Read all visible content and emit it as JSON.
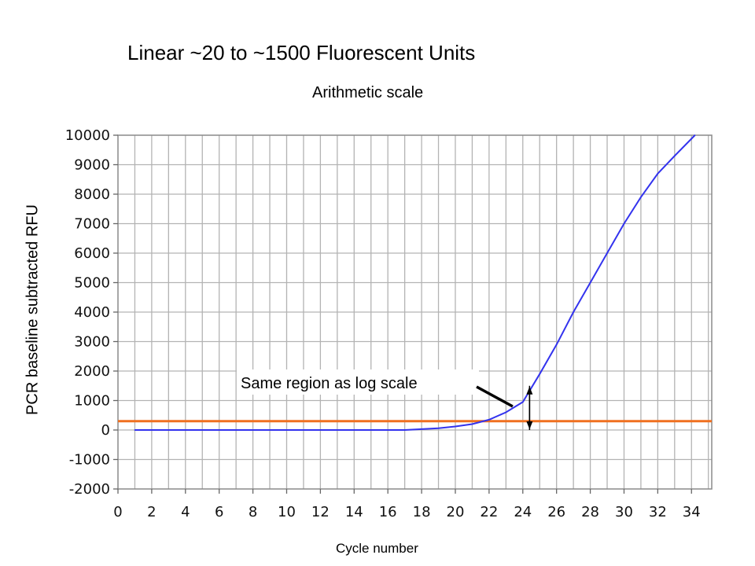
{
  "chart_data": {
    "type": "line",
    "title": "Linear ~20 to ~1500 Fluorescent Units",
    "subtitle": "Arithmetic scale",
    "xlabel": "Cycle number",
    "ylabel": "PCR baseline subtracted RFU",
    "xlim": [
      0,
      35.2
    ],
    "ylim": [
      -2000,
      10000
    ],
    "x_ticks": [
      0,
      2,
      4,
      6,
      8,
      10,
      12,
      14,
      16,
      18,
      20,
      22,
      24,
      26,
      28,
      30,
      32,
      34
    ],
    "y_ticks": [
      -2000,
      -1000,
      0,
      1000,
      2000,
      3000,
      4000,
      5000,
      6000,
      7000,
      8000,
      9000,
      10000
    ],
    "grid": true,
    "series": [
      {
        "color": "#3333ee",
        "x": [
          1,
          17,
          18,
          19,
          20,
          21,
          22,
          23,
          24,
          25,
          26,
          27,
          28,
          29,
          30,
          31,
          32,
          33,
          34.2
        ],
        "y": [
          0,
          0,
          30,
          60,
          120,
          200,
          350,
          600,
          950,
          1900,
          2900,
          4000,
          5000,
          6000,
          7000,
          7900,
          8700,
          9300,
          10000
        ]
      }
    ],
    "threshold": {
      "y": 300,
      "color": "#f07020"
    },
    "annotation": {
      "text": "Same region as log scale",
      "arrow_to": [
        23.4,
        800
      ],
      "range_x": 24.4,
      "range_y": [
        0,
        1500
      ]
    }
  }
}
